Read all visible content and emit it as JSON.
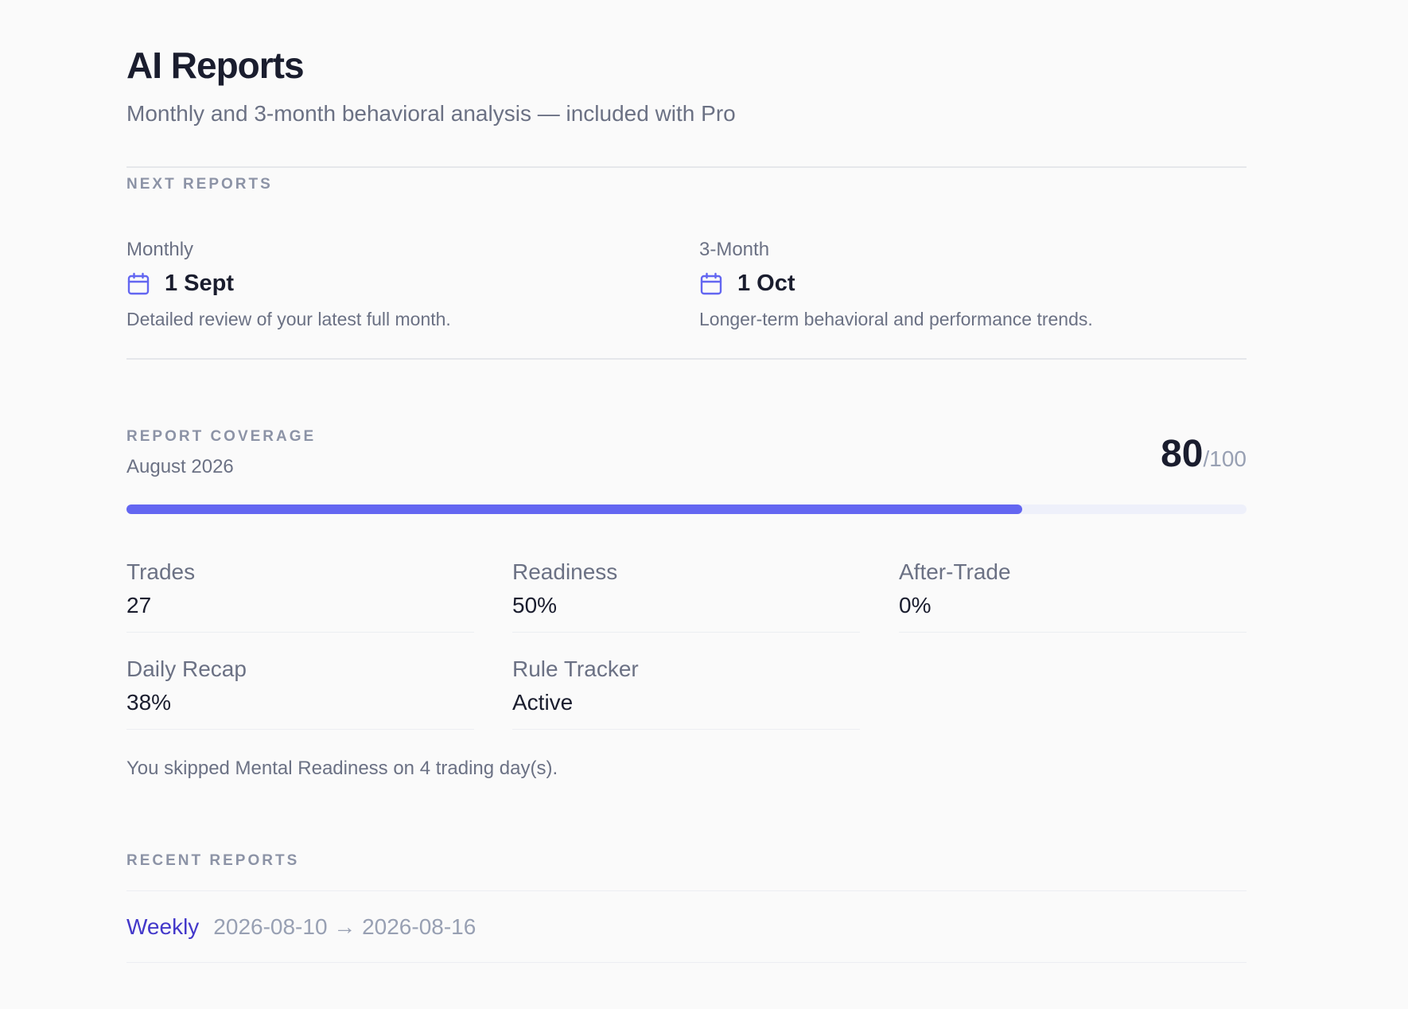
{
  "header": {
    "title": "AI Reports",
    "subtitle": "Monthly and 3-month behavioral analysis — included with Pro"
  },
  "next_reports": {
    "label": "NEXT REPORTS",
    "items": [
      {
        "kind": "Monthly",
        "date": "1 Sept",
        "description": "Detailed review of your latest full month.",
        "icon": "calendar-icon"
      },
      {
        "kind": "3-Month",
        "date": "1 Oct",
        "description": "Longer-term behavioral and performance trends.",
        "icon": "calendar-icon"
      }
    ]
  },
  "coverage": {
    "label": "REPORT COVERAGE",
    "period": "August 2026",
    "score": "80",
    "score_max": "/100",
    "progress_fraction": 0.8,
    "stats": [
      {
        "label": "Trades",
        "value": "27"
      },
      {
        "label": "Readiness",
        "value": "50%"
      },
      {
        "label": "After-Trade",
        "value": "0%"
      },
      {
        "label": "Daily Recap",
        "value": "38%"
      },
      {
        "label": "Rule Tracker",
        "value": "Active"
      }
    ],
    "note": "You skipped Mental Readiness on 4 trading day(s)."
  },
  "recent_reports": {
    "label": "RECENT REPORTS",
    "items": [
      {
        "kind": "Weekly",
        "range": "2026-08-10 → 2026-08-16"
      }
    ]
  },
  "colors": {
    "accent": "#6366f1",
    "link": "#4338ca",
    "text": "#1a1d2e",
    "muted": "#6b7184",
    "background": "#fafafa"
  }
}
